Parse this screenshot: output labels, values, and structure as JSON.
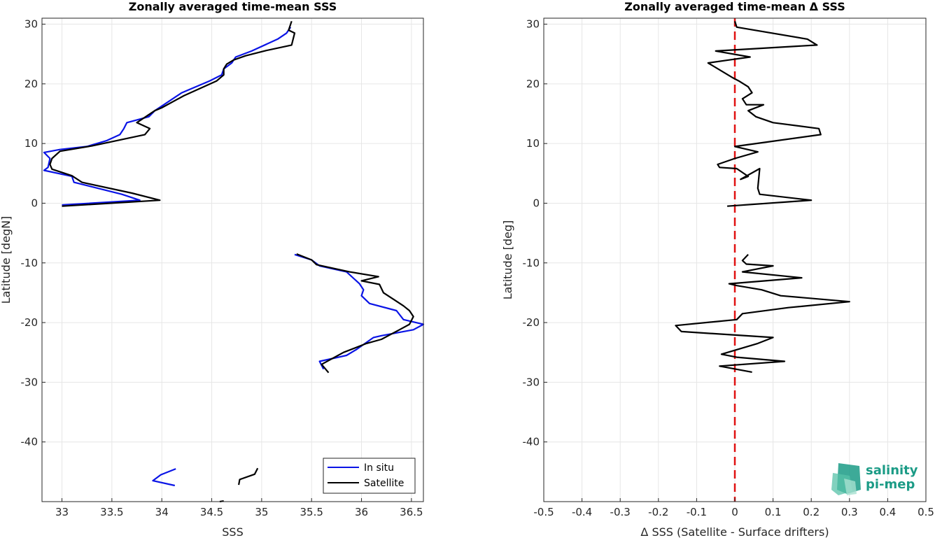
{
  "colors": {
    "in_situ": "#0a14e6",
    "satellite": "#000000",
    "zero_line": "#e01010",
    "logo": "#1b9b86"
  },
  "logo": {
    "line1": "salinity",
    "line2": "pi-mep"
  },
  "chart_data": [
    {
      "type": "line",
      "title": "Zonally averaged time-mean SSS",
      "xlabel": "SSS",
      "ylabel": "Latitude [degN]",
      "xlim": [
        32.8,
        36.62
      ],
      "ylim": [
        -50,
        31
      ],
      "xticks": [
        33,
        33.5,
        34,
        34.5,
        35,
        35.5,
        36,
        36.5
      ],
      "xtick_labels": [
        "33",
        "33.5",
        "34",
        "34.5",
        "35",
        "35.5",
        "36",
        "36.5"
      ],
      "yticks": [
        30,
        20,
        10,
        0,
        -10,
        -20,
        -30,
        -40
      ],
      "ytick_labels": [
        "30",
        "20",
        "10",
        "0",
        "-10",
        "-20",
        "-30",
        "-40"
      ],
      "grid": true,
      "legend": {
        "position": "bottom-right",
        "entries": [
          "In situ",
          "Satellite"
        ]
      },
      "series": [
        {
          "name": "In situ",
          "segments": [
            [
              [
                35.29,
                29.5
              ],
              [
                35.25,
                28.5
              ],
              [
                35.16,
                27.5
              ],
              [
                34.9,
                25.5
              ],
              [
                34.74,
                24.5
              ],
              [
                34.7,
                23.5
              ],
              [
                34.62,
                22.5
              ],
              [
                34.6,
                21.5
              ],
              [
                34.48,
                20.5
              ],
              [
                34.2,
                18.5
              ],
              [
                34.02,
                16.5
              ],
              [
                33.93,
                15.5
              ],
              [
                33.87,
                14.5
              ],
              [
                33.65,
                13.5
              ],
              [
                33.62,
                12.5
              ],
              [
                33.58,
                11.5
              ],
              [
                33.45,
                10.5
              ],
              [
                33.25,
                9.5
              ],
              [
                32.98,
                9.0
              ],
              [
                32.82,
                8.5
              ],
              [
                32.88,
                7.5
              ],
              [
                32.86,
                6.0
              ],
              [
                32.82,
                5.5
              ],
              [
                33.1,
                4.5
              ],
              [
                33.12,
                3.5
              ],
              [
                33.6,
                1.5
              ],
              [
                33.78,
                0.5
              ],
              [
                33.0,
                -0.3
              ]
            ],
            [
              [
                35.33,
                -8.6
              ],
              [
                35.5,
                -9.5
              ],
              [
                35.58,
                -10.5
              ],
              [
                35.85,
                -11.5
              ],
              [
                35.98,
                -13.5
              ],
              [
                36.02,
                -14.5
              ],
              [
                36.0,
                -15.5
              ],
              [
                36.08,
                -16.8
              ],
              [
                36.35,
                -18.0
              ],
              [
                36.42,
                -19.5
              ],
              [
                36.62,
                -20.3
              ],
              [
                36.52,
                -21.2
              ],
              [
                36.2,
                -22.2
              ],
              [
                36.12,
                -22.5
              ],
              [
                35.95,
                -24.5
              ],
              [
                35.85,
                -25.5
              ],
              [
                35.58,
                -26.5
              ],
              [
                35.62,
                -27.8
              ]
            ],
            [
              [
                34.14,
                -44.5
              ],
              [
                33.99,
                -45.5
              ],
              [
                33.91,
                -46.5
              ],
              [
                34.13,
                -47.3
              ]
            ]
          ]
        },
        {
          "name": "Satellite",
          "segments": [
            [
              [
                35.3,
                30.5
              ],
              [
                35.27,
                29.0
              ],
              [
                35.33,
                28.5
              ],
              [
                35.3,
                26.5
              ],
              [
                35.05,
                25.6
              ],
              [
                34.84,
                24.7
              ],
              [
                34.72,
                24.0
              ],
              [
                34.65,
                23.3
              ],
              [
                34.62,
                22.5
              ],
              [
                34.62,
                21.5
              ],
              [
                34.55,
                20.5
              ],
              [
                34.22,
                18.0
              ],
              [
                34.0,
                16.0
              ],
              [
                33.93,
                15.5
              ],
              [
                33.75,
                13.5
              ],
              [
                33.88,
                12.5
              ],
              [
                33.83,
                11.5
              ],
              [
                33.3,
                9.6
              ],
              [
                32.98,
                8.7
              ],
              [
                32.9,
                7.5
              ],
              [
                32.88,
                6.5
              ],
              [
                32.9,
                5.7
              ],
              [
                33.1,
                4.6
              ],
              [
                33.2,
                3.5
              ],
              [
                33.7,
                1.7
              ],
              [
                33.98,
                0.5
              ],
              [
                33.0,
                -0.5
              ]
            ],
            [
              [
                35.35,
                -8.5
              ],
              [
                35.5,
                -9.5
              ],
              [
                35.55,
                -10.3
              ],
              [
                35.88,
                -11.5
              ],
              [
                36.17,
                -12.3
              ],
              [
                36.0,
                -13.0
              ],
              [
                36.18,
                -13.6
              ],
              [
                36.22,
                -15.0
              ],
              [
                36.33,
                -16.2
              ],
              [
                36.42,
                -17.2
              ],
              [
                36.48,
                -18.0
              ],
              [
                36.52,
                -19.0
              ],
              [
                36.48,
                -20.3
              ],
              [
                36.38,
                -21.2
              ],
              [
                36.2,
                -22.8
              ],
              [
                36.05,
                -23.5
              ],
              [
                35.82,
                -25.0
              ],
              [
                35.6,
                -27.0
              ],
              [
                35.67,
                -28.4
              ]
            ],
            [
              [
                34.96,
                -44.4
              ],
              [
                34.93,
                -45.4
              ],
              [
                34.78,
                -46.3
              ],
              [
                34.77,
                -47.2
              ]
            ],
            [
              [
                34.62,
                -49.9
              ],
              [
                34.58,
                -50.0
              ]
            ]
          ]
        }
      ]
    },
    {
      "type": "line",
      "title": "Zonally averaged time-mean Δ SSS",
      "xlabel": "Δ SSS (Satellite - Surface drifters)",
      "ylabel": "Latitude [deg]",
      "xlim": [
        -0.5,
        0.5
      ],
      "ylim": [
        -50,
        31
      ],
      "xticks": [
        -0.5,
        -0.4,
        -0.3,
        -0.2,
        -0.1,
        0,
        0.1,
        0.2,
        0.3,
        0.4,
        0.5
      ],
      "xtick_labels": [
        "-0.5",
        "-0.4",
        "-0.3",
        "-0.2",
        "-0.1",
        "0",
        "0.1",
        "0.2",
        "0.3",
        "0.4",
        "0.5"
      ],
      "yticks": [
        30,
        20,
        10,
        0,
        -10,
        -20,
        -30,
        -40
      ],
      "ytick_labels": [
        "30",
        "20",
        "10",
        "0",
        "-10",
        "-20",
        "-30",
        "-40"
      ],
      "grid": true,
      "reference_line": {
        "x": 0,
        "style": "dashed"
      },
      "series": [
        {
          "segments": [
            [
              [
                0.0,
                30.5
              ],
              [
                0.005,
                29.5
              ],
              [
                0.19,
                27.5
              ],
              [
                0.215,
                26.5
              ],
              [
                -0.05,
                25.5
              ],
              [
                0.04,
                24.5
              ],
              [
                -0.015,
                24.0
              ],
              [
                -0.07,
                23.5
              ],
              [
                -0.005,
                21.0
              ],
              [
                0.01,
                20.5
              ],
              [
                0.035,
                19.5
              ],
              [
                0.045,
                18.5
              ],
              [
                0.02,
                17.5
              ],
              [
                0.03,
                16.5
              ],
              [
                0.075,
                16.5
              ],
              [
                0.035,
                15.5
              ],
              [
                0.055,
                14.5
              ],
              [
                0.1,
                13.5
              ],
              [
                0.22,
                12.5
              ],
              [
                0.225,
                11.5
              ],
              [
                0.0,
                9.5
              ],
              [
                0.06,
                8.6
              ],
              [
                0.0,
                7.5
              ],
              [
                -0.045,
                6.5
              ],
              [
                -0.04,
                6.0
              ],
              [
                0.005,
                5.8
              ],
              [
                0.035,
                4.5
              ],
              [
                0.015,
                4.0
              ],
              [
                0.065,
                5.8
              ],
              [
                0.06,
                2.5
              ],
              [
                0.065,
                1.5
              ],
              [
                0.2,
                0.5
              ],
              [
                -0.02,
                -0.5
              ]
            ],
            [
              [
                0.035,
                -8.6
              ],
              [
                0.02,
                -9.6
              ],
              [
                0.03,
                -10.2
              ],
              [
                0.1,
                -10.5
              ],
              [
                0.02,
                -11.5
              ],
              [
                0.175,
                -12.5
              ],
              [
                -0.015,
                -13.5
              ],
              [
                0.005,
                -13.8
              ],
              [
                0.07,
                -14.5
              ],
              [
                0.12,
                -15.5
              ],
              [
                0.3,
                -16.5
              ],
              [
                0.14,
                -17.5
              ],
              [
                0.02,
                -18.5
              ],
              [
                0.005,
                -19.5
              ],
              [
                -0.155,
                -20.5
              ],
              [
                -0.14,
                -21.5
              ],
              [
                0.1,
                -22.5
              ],
              [
                0.06,
                -23.5
              ],
              [
                -0.035,
                -25.3
              ],
              [
                0.005,
                -25.8
              ],
              [
                0.13,
                -26.5
              ],
              [
                -0.04,
                -27.3
              ],
              [
                0.045,
                -28.3
              ]
            ]
          ]
        }
      ]
    }
  ]
}
